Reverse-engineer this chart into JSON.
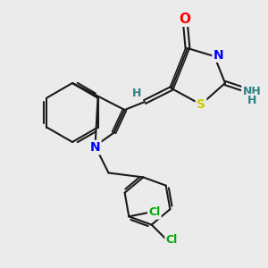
{
  "background_color": "#ebebeb",
  "bond_color": "#1a1a1a",
  "bond_lw": 1.5,
  "atom_colors": {
    "O": "#ff0000",
    "N": "#0000ff",
    "S": "#cccc00",
    "Cl": "#00aa00",
    "H_label": "#2f8080",
    "NH": "#2f8080",
    "C": "#1a1a1a"
  },
  "font_size": 9,
  "figsize": [
    3.0,
    3.0
  ],
  "dpi": 100
}
